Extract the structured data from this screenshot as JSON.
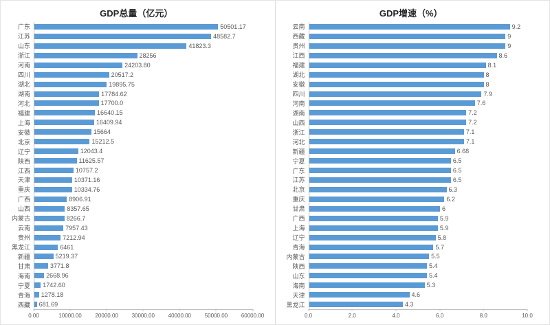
{
  "figure": {
    "background": "#ffffff",
    "border_color": "#e3e3e3",
    "divider_color": "#dcdcdc",
    "axis_color": "#bfbfbf",
    "label_color": "#595959",
    "title_color": "#262626"
  },
  "chart_data": [
    {
      "type": "bar",
      "orientation": "horizontal",
      "title": "GDP总量（亿元）",
      "bar_color": "#5B9BD5",
      "grid": false,
      "legend": false,
      "xlim": [
        0,
        60000
      ],
      "x_ticks": [
        "0.00",
        "10000.00",
        "20000.00",
        "30000.00",
        "40000.00",
        "50000.00",
        "60000.00"
      ],
      "categories": [
        "广东",
        "江苏",
        "山东",
        "浙江",
        "河南",
        "四川",
        "湖北",
        "湖南",
        "河北",
        "福建",
        "上海",
        "安徽",
        "北京",
        "辽宁",
        "陕西",
        "江西",
        "天津",
        "重庆",
        "广西",
        "山西",
        "内蒙古",
        "云南",
        "贵州",
        "黑龙江",
        "新疆",
        "甘肃",
        "海南",
        "宁夏",
        "青海",
        "西藏"
      ],
      "values": [
        50501.17,
        48582.7,
        41823.3,
        28256,
        24203.8,
        20517.2,
        19895.75,
        17784.62,
        17700,
        16640.15,
        16409.94,
        15664,
        15212.5,
        12043.4,
        11625.57,
        10757.2,
        10371.16,
        10334.76,
        8906.91,
        8357.65,
        8266.7,
        7957.43,
        7212.94,
        6461,
        5219.37,
        3771.8,
        2668.96,
        1742.6,
        1278.18,
        681.69
      ],
      "value_labels": [
        "50501.17",
        "48582.7",
        "41823.3",
        "28256",
        "24203.80",
        "20517.2",
        "19895.75",
        "17784.62",
        "17700.0",
        "16640.15",
        "16409.94",
        "15664",
        "15212.5",
        "12043.4",
        "11625.57",
        "10757.2",
        "10371.16",
        "10334.76",
        "8906.91",
        "8357.65",
        "8266.7",
        "7957.43",
        "7212.94",
        "6461",
        "5219.37",
        "3771.8",
        "2668.96",
        "1742.60",
        "1278.18",
        "681.69"
      ]
    },
    {
      "type": "bar",
      "orientation": "horizontal",
      "title": "GDP增速（%）",
      "bar_color": "#5B9BD5",
      "grid": false,
      "legend": false,
      "xlim": [
        0,
        10
      ],
      "x_ticks": [
        "0.0",
        "2.0",
        "4.0",
        "6.0",
        "8.0",
        "10.0"
      ],
      "categories": [
        "云南",
        "西藏",
        "贵州",
        "江西",
        "福建",
        "湖北",
        "安徽",
        "四川",
        "河南",
        "湖南",
        "山西",
        "浙江",
        "河北",
        "新疆",
        "宁夏",
        "广东",
        "江苏",
        "北京",
        "重庆",
        "甘肃",
        "广西",
        "上海",
        "辽宁",
        "青海",
        "内蒙古",
        "陕西",
        "山东",
        "海南",
        "天津",
        "黑龙江"
      ],
      "values": [
        9.2,
        9,
        9,
        8.6,
        8.1,
        8,
        8,
        7.9,
        7.6,
        7.2,
        7.2,
        7.1,
        7.1,
        6.68,
        6.5,
        6.5,
        6.5,
        6.3,
        6.2,
        6,
        5.9,
        5.9,
        5.8,
        5.7,
        5.5,
        5.4,
        5.4,
        5.3,
        4.6,
        4.3
      ],
      "value_labels": [
        "9.2",
        "9",
        "9",
        "8.6",
        "8.1",
        "8",
        "8",
        "7.9",
        "7.6",
        "7.2",
        "7.2",
        "7.1",
        "7.1",
        "6.68",
        "6.5",
        "6.5",
        "6.5",
        "6.3",
        "6.2",
        "6",
        "5.9",
        "5.9",
        "5.8",
        "5.7",
        "5.5",
        "5.4",
        "5.4",
        "5.3",
        "4.6",
        "4.3"
      ]
    }
  ]
}
